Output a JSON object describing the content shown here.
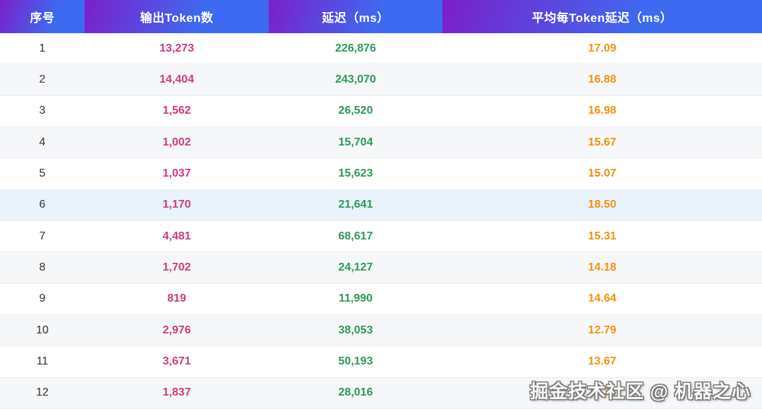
{
  "table": {
    "columns": [
      {
        "label": "序号"
      },
      {
        "label": "输出Token数"
      },
      {
        "label": "延迟（ms）"
      },
      {
        "label": "平均每Token延迟（ms）"
      }
    ],
    "rows": [
      {
        "index": "1",
        "tokens": "13,273",
        "latency": "226,876",
        "per_token": "17.09",
        "highlighted": false
      },
      {
        "index": "2",
        "tokens": "14,404",
        "latency": "243,070",
        "per_token": "16.88",
        "highlighted": false
      },
      {
        "index": "3",
        "tokens": "1,562",
        "latency": "26,520",
        "per_token": "16.98",
        "highlighted": false
      },
      {
        "index": "4",
        "tokens": "1,002",
        "latency": "15,704",
        "per_token": "15.67",
        "highlighted": false
      },
      {
        "index": "5",
        "tokens": "1,037",
        "latency": "15,623",
        "per_token": "15.07",
        "highlighted": false
      },
      {
        "index": "6",
        "tokens": "1,170",
        "latency": "21,641",
        "per_token": "18.50",
        "highlighted": true
      },
      {
        "index": "7",
        "tokens": "4,481",
        "latency": "68,617",
        "per_token": "15.31",
        "highlighted": false
      },
      {
        "index": "8",
        "tokens": "1,702",
        "latency": "24,127",
        "per_token": "14.18",
        "highlighted": false
      },
      {
        "index": "9",
        "tokens": "819",
        "latency": "11,990",
        "per_token": "14.64",
        "highlighted": false
      },
      {
        "index": "10",
        "tokens": "2,976",
        "latency": "38,053",
        "per_token": "12.79",
        "highlighted": false
      },
      {
        "index": "11",
        "tokens": "3,671",
        "latency": "50,193",
        "per_token": "13.67",
        "highlighted": false
      },
      {
        "index": "12",
        "tokens": "1,837",
        "latency": "28,016",
        "per_token": "15.25",
        "highlighted": false
      }
    ]
  },
  "watermark": {
    "text": "掘金技术社区 @ 机器之心"
  },
  "colors": {
    "header_gradient_start": "#7B1FC9",
    "header_gradient_end": "#3E69F1",
    "index_text": "#333333",
    "tokens_text": "#d1397f",
    "latency_text": "#2f9858",
    "per_token_text": "#f2920e",
    "zebra_row": "#f6f7f9",
    "hover_row": "#e9f3fb",
    "row_border": "#eceef3"
  },
  "chart_data": {
    "type": "table",
    "title": "",
    "columns": [
      "序号",
      "输出Token数",
      "延迟（ms）",
      "平均每Token延迟（ms）"
    ],
    "rows": [
      [
        1,
        13273,
        226876,
        17.09
      ],
      [
        2,
        14404,
        243070,
        16.88
      ],
      [
        3,
        1562,
        26520,
        16.98
      ],
      [
        4,
        1002,
        15704,
        15.67
      ],
      [
        5,
        1037,
        15623,
        15.07
      ],
      [
        6,
        1170,
        21641,
        18.5
      ],
      [
        7,
        4481,
        68617,
        15.31
      ],
      [
        8,
        1702,
        24127,
        14.18
      ],
      [
        9,
        819,
        11990,
        14.64
      ],
      [
        10,
        2976,
        38053,
        12.79
      ],
      [
        11,
        3671,
        50193,
        13.67
      ],
      [
        12,
        1837,
        28016,
        15.25
      ]
    ]
  }
}
